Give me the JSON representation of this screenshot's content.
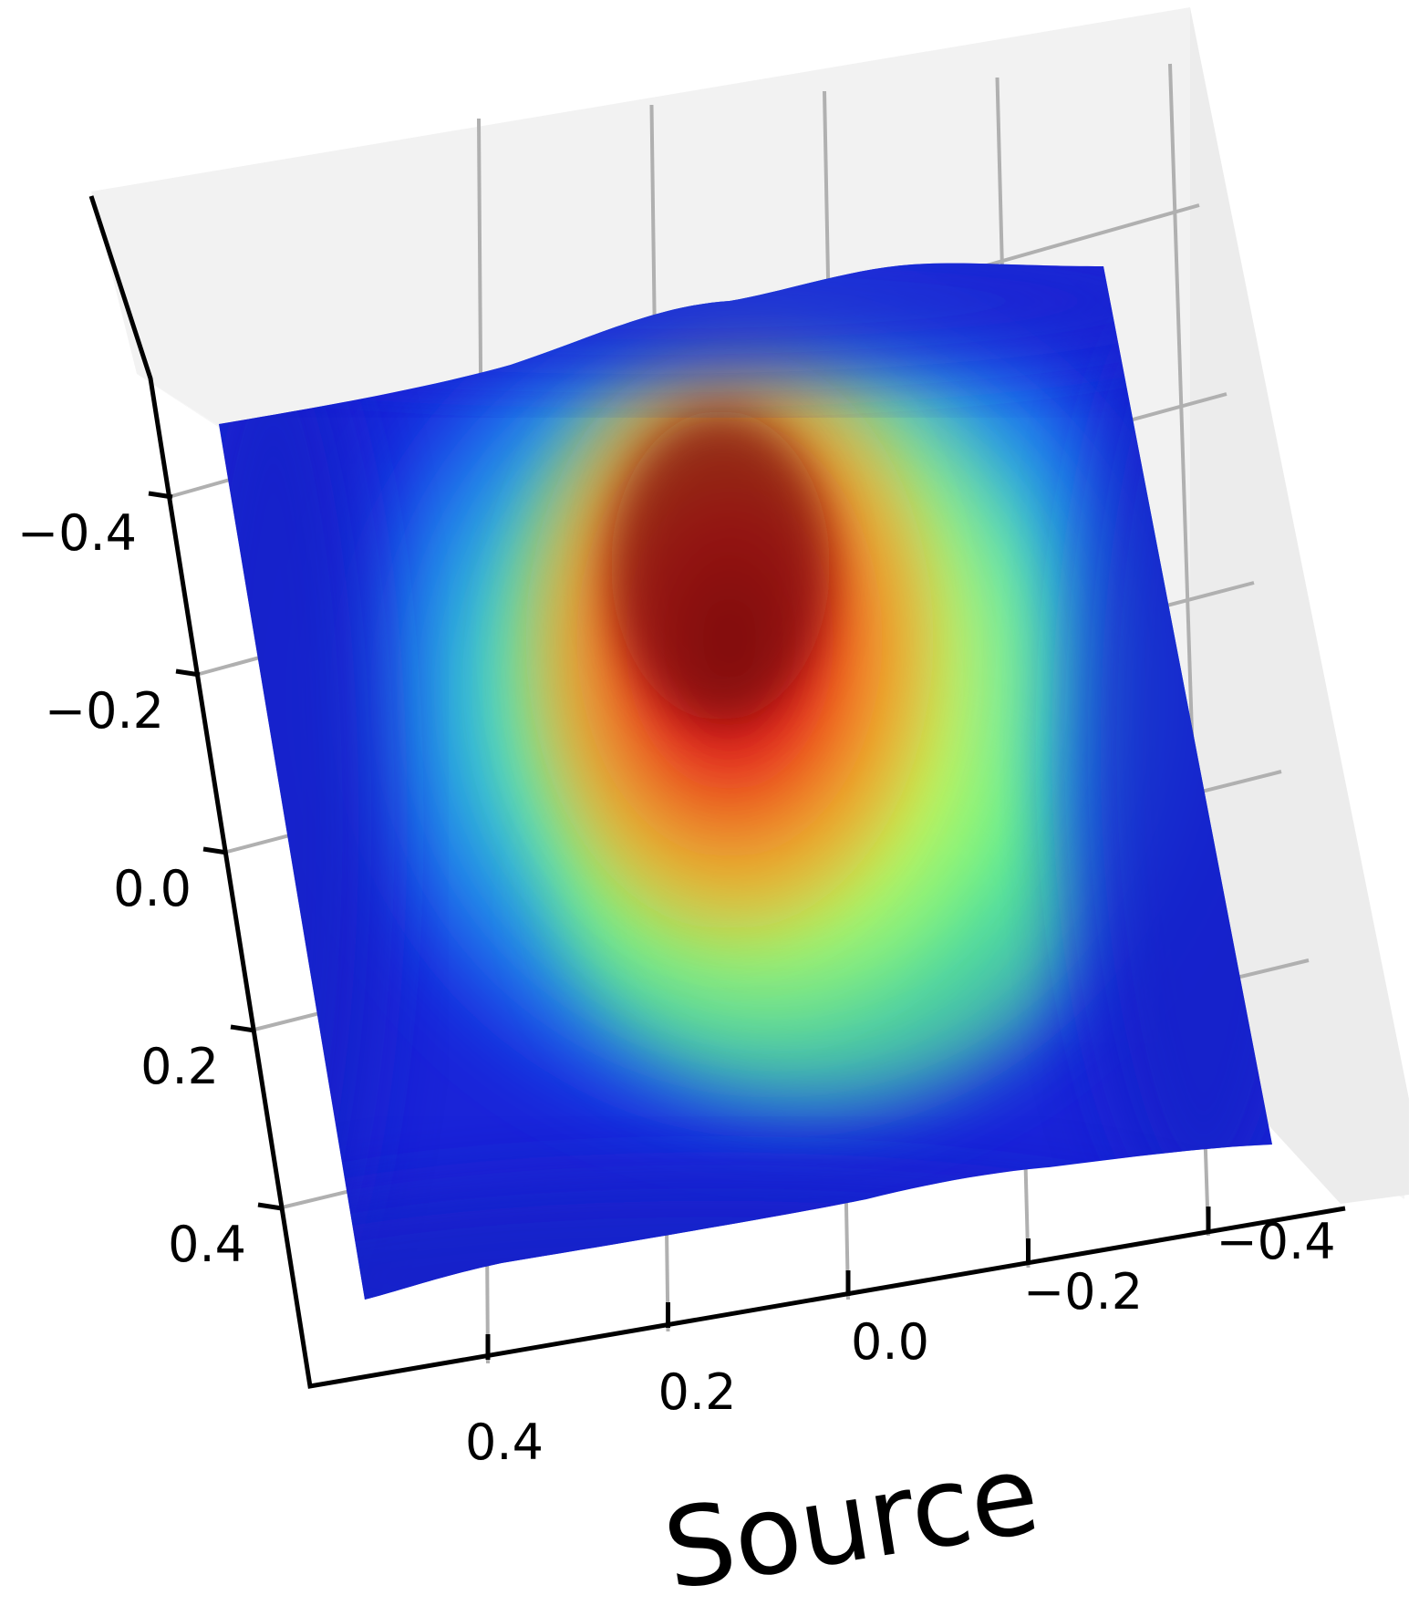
{
  "chart_data": {
    "type": "surface3d",
    "colormap": "jet",
    "xlabel": "Source",
    "ylabel": "",
    "zlabel": "",
    "xlim": [
      -0.5,
      0.5
    ],
    "ylim": [
      -0.5,
      0.5
    ],
    "x_ticks": [
      "0.4",
      "0.2",
      "0.0",
      "−0.2",
      "−0.4"
    ],
    "y_ticks": [
      "−0.4",
      "−0.2",
      "0.0",
      "0.2",
      "0.4"
    ],
    "grid": true,
    "surface_peaks": [
      {
        "x": 0.07,
        "y": -0.3,
        "intensity": 1.0
      },
      {
        "x": 0.05,
        "y": 0.0,
        "intensity": 0.9
      },
      {
        "x": -0.1,
        "y": -0.05,
        "intensity": 0.75
      },
      {
        "x": -0.15,
        "y": 0.25,
        "intensity": 0.5
      }
    ],
    "colors": {
      "pane": "#f2f2f2",
      "grid": "#b0b0b0",
      "axis": "#000000"
    }
  }
}
